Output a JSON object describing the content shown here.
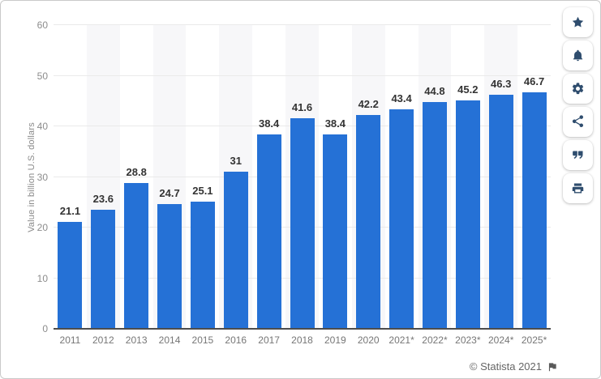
{
  "chart_data": {
    "type": "bar",
    "title": "",
    "categories": [
      "2011",
      "2012",
      "2013",
      "2014",
      "2015",
      "2016",
      "2017",
      "2018",
      "2019",
      "2020",
      "2021*",
      "2022*",
      "2023*",
      "2024*",
      "2025*"
    ],
    "values": [
      21.1,
      23.6,
      28.8,
      24.7,
      25.1,
      31,
      38.4,
      41.6,
      38.4,
      42.2,
      43.4,
      44.8,
      45.2,
      46.3,
      46.7
    ],
    "value_labels": [
      "21.1",
      "23.6",
      "28.8",
      "24.7",
      "25.1",
      "31",
      "38.4",
      "41.6",
      "38.4",
      "42.2",
      "43.4",
      "44.8",
      "45.2",
      "46.3",
      "46.7"
    ],
    "xlabel": "",
    "ylabel": "Value in billion U.S. dollars",
    "ylim": [
      0,
      60
    ],
    "yticks": [
      0,
      10,
      20,
      30,
      40,
      50,
      60
    ],
    "grid": true,
    "legend": false,
    "bar_color": "#2571d6"
  },
  "sidebar": {
    "buttons": [
      {
        "name": "favorite",
        "icon": "star-icon"
      },
      {
        "name": "alerts",
        "icon": "bell-icon"
      },
      {
        "name": "settings",
        "icon": "gear-icon"
      },
      {
        "name": "share",
        "icon": "share-icon"
      },
      {
        "name": "cite",
        "icon": "quote-icon"
      },
      {
        "name": "print",
        "icon": "printer-icon"
      }
    ],
    "icon_color": "#2f4d6e"
  },
  "footer": {
    "copyright": "© Statista 2021",
    "flag_icon": "report-flag-icon"
  },
  "colors": {
    "bar": "#2571d6",
    "axis_text": "#8c8c8c",
    "x_axis_text": "#767676",
    "value_label": "#333333",
    "gridline": "#eaeaea",
    "zero_line": "#4d4d4d",
    "column_band": "#f7f7f9",
    "frame_border": "#c9c9c9"
  }
}
